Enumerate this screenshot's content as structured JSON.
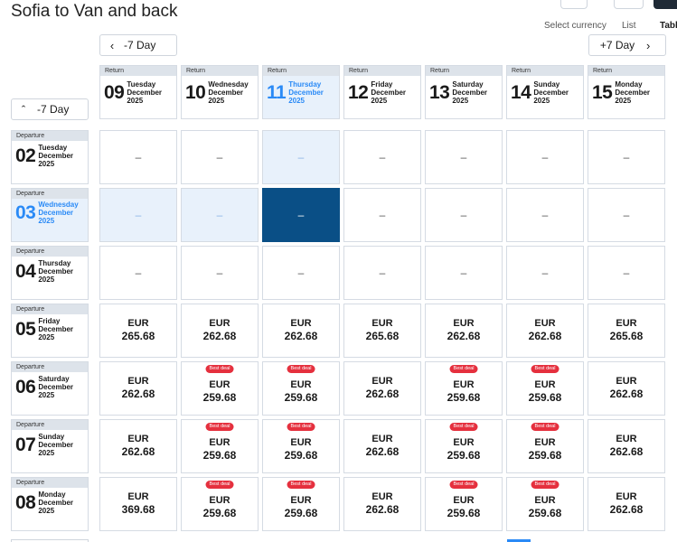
{
  "header": {
    "title": "Sofia to Van and back",
    "view_labels": {
      "currency": "Select currency",
      "list": "List",
      "table": "Table"
    }
  },
  "nav": {
    "prev_return": "-7 Day",
    "next_return": "+7 Day",
    "prev_departure": "-7 Day"
  },
  "return_label": "Return",
  "departure_label": "Departure",
  "return_dates": [
    {
      "day": "09",
      "weekday": "Tuesday",
      "month": "December",
      "year": "2025",
      "selected": false
    },
    {
      "day": "10",
      "weekday": "Wednesday",
      "month": "December",
      "year": "2025",
      "selected": false
    },
    {
      "day": "11",
      "weekday": "Thursday",
      "month": "December",
      "year": "2025",
      "selected": true
    },
    {
      "day": "12",
      "weekday": "Friday",
      "month": "December",
      "year": "2025",
      "selected": false
    },
    {
      "day": "13",
      "weekday": "Saturday",
      "month": "December",
      "year": "2025",
      "selected": false
    },
    {
      "day": "14",
      "weekday": "Sunday",
      "month": "December",
      "year": "2025",
      "selected": false
    },
    {
      "day": "15",
      "weekday": "Monday",
      "month": "December",
      "year": "2025",
      "selected": false
    }
  ],
  "departure_dates": [
    {
      "day": "02",
      "weekday": "Tuesday",
      "month": "December",
      "year": "2025",
      "selected": false
    },
    {
      "day": "03",
      "weekday": "Wednesday",
      "month": "December",
      "year": "2025",
      "selected": true
    },
    {
      "day": "04",
      "weekday": "Thursday",
      "month": "December",
      "year": "2025",
      "selected": false
    },
    {
      "day": "05",
      "weekday": "Friday",
      "month": "December",
      "year": "2025",
      "selected": false
    },
    {
      "day": "06",
      "weekday": "Saturday",
      "month": "December",
      "year": "2025",
      "selected": false
    },
    {
      "day": "07",
      "weekday": "Sunday",
      "month": "December",
      "year": "2025",
      "selected": false
    },
    {
      "day": "08",
      "weekday": "Monday",
      "month": "December",
      "year": "2025",
      "selected": false
    }
  ],
  "deal_label": "Best deal",
  "currency": "EUR",
  "grid": [
    [
      {
        "price": null,
        "state": "plain"
      },
      {
        "price": null,
        "state": "plain"
      },
      {
        "price": null,
        "state": "hl"
      },
      {
        "price": null,
        "state": "plain"
      },
      {
        "price": null,
        "state": "plain"
      },
      {
        "price": null,
        "state": "plain"
      },
      {
        "price": null,
        "state": "plain"
      }
    ],
    [
      {
        "price": null,
        "state": "hl"
      },
      {
        "price": null,
        "state": "hl"
      },
      {
        "price": null,
        "state": "active"
      },
      {
        "price": null,
        "state": "plain"
      },
      {
        "price": null,
        "state": "plain"
      },
      {
        "price": null,
        "state": "plain"
      },
      {
        "price": null,
        "state": "plain"
      }
    ],
    [
      {
        "price": null,
        "state": "plain"
      },
      {
        "price": null,
        "state": "plain"
      },
      {
        "price": null,
        "state": "plain"
      },
      {
        "price": null,
        "state": "plain"
      },
      {
        "price": null,
        "state": "plain"
      },
      {
        "price": null,
        "state": "plain"
      },
      {
        "price": null,
        "state": "plain"
      }
    ],
    [
      {
        "price": "265.68",
        "deal": false
      },
      {
        "price": "262.68",
        "deal": false
      },
      {
        "price": "262.68",
        "deal": false
      },
      {
        "price": "265.68",
        "deal": false
      },
      {
        "price": "262.68",
        "deal": false
      },
      {
        "price": "262.68",
        "deal": false
      },
      {
        "price": "265.68",
        "deal": false
      }
    ],
    [
      {
        "price": "262.68",
        "deal": false
      },
      {
        "price": "259.68",
        "deal": true
      },
      {
        "price": "259.68",
        "deal": true
      },
      {
        "price": "262.68",
        "deal": false
      },
      {
        "price": "259.68",
        "deal": true
      },
      {
        "price": "259.68",
        "deal": true
      },
      {
        "price": "262.68",
        "deal": false
      }
    ],
    [
      {
        "price": "262.68",
        "deal": false
      },
      {
        "price": "259.68",
        "deal": true
      },
      {
        "price": "259.68",
        "deal": true
      },
      {
        "price": "262.68",
        "deal": false
      },
      {
        "price": "259.68",
        "deal": true
      },
      {
        "price": "259.68",
        "deal": true
      },
      {
        "price": "262.68",
        "deal": false
      }
    ],
    [
      {
        "price": "369.68",
        "deal": false
      },
      {
        "price": "259.68",
        "deal": true
      },
      {
        "price": "259.68",
        "deal": true
      },
      {
        "price": "262.68",
        "deal": false
      },
      {
        "price": "259.68",
        "deal": true
      },
      {
        "price": "259.68",
        "deal": true
      },
      {
        "price": "262.68",
        "deal": false
      }
    ]
  ],
  "empty_symbol": "–",
  "colors": {
    "accent": "#2a8af6",
    "selected_cell": "#0a4f86",
    "highlight": "#e8f1fb",
    "deal_badge": "#e5303e",
    "header_bar": "#dde3ea"
  }
}
